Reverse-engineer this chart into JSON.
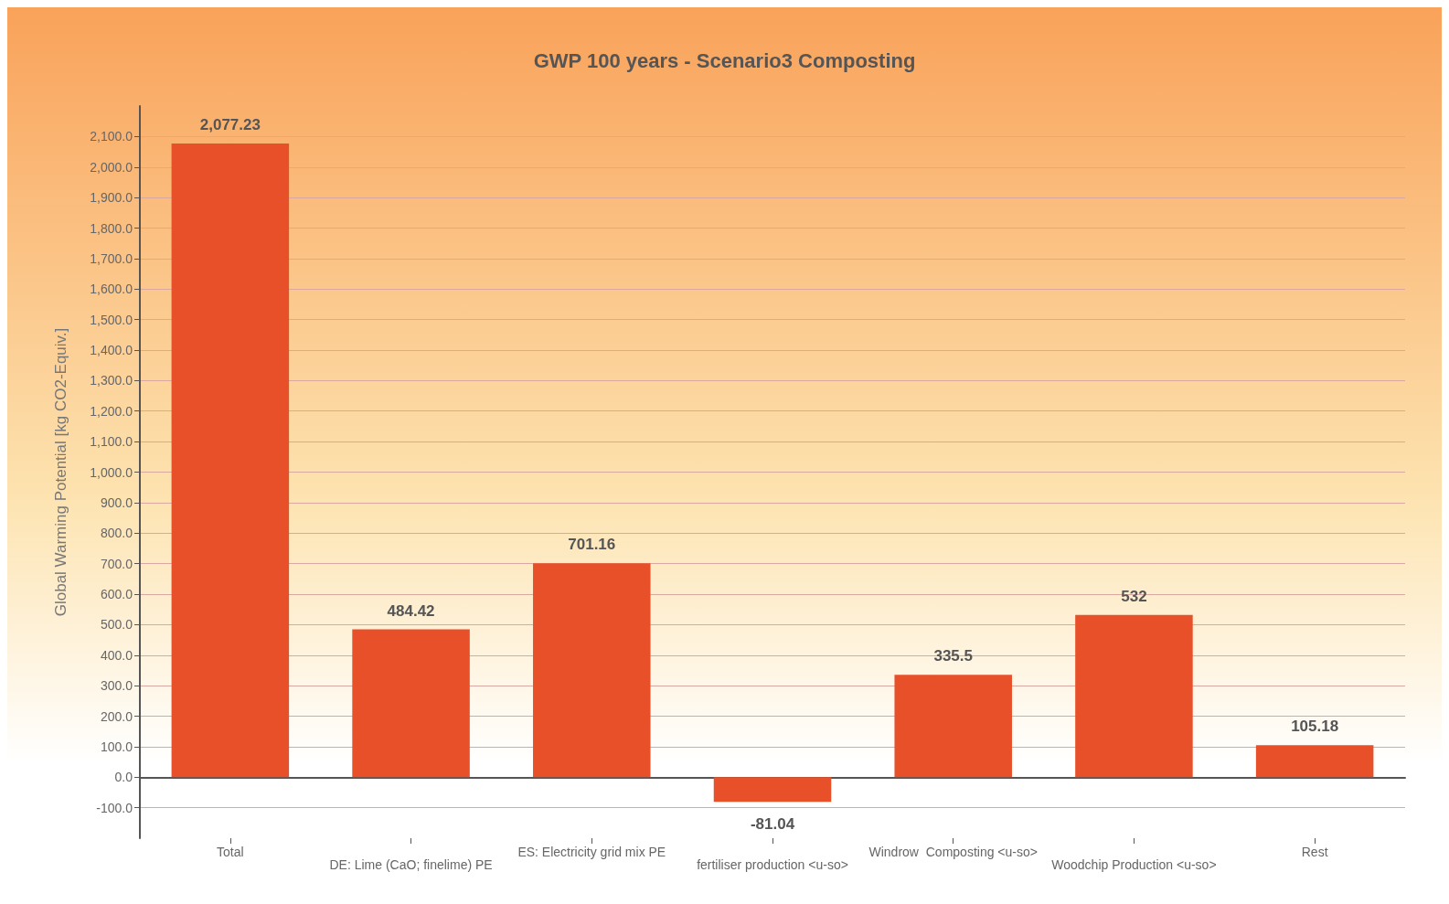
{
  "chart_data": {
    "type": "bar",
    "title": "GWP 100 years - Scenario3 Composting",
    "ylabel": "Global Warming Potential [kg CO2-Equiv.]",
    "categories": [
      "Total",
      "DE: Lime (CaO; finelime) PE",
      "ES: Electricity grid mix PE",
      "fertiliser production <u-so>",
      "Windrow  Composting <u-so>",
      "Woodchip Production <u-so>",
      "Rest"
    ],
    "values": [
      2077.23,
      484.42,
      701.16,
      -81.04,
      335.5,
      532,
      105.18
    ],
    "value_labels": [
      "2,077.23",
      "484.42",
      "701.16",
      "-81.04",
      "335.5",
      "532",
      "105.18"
    ],
    "color": "#e8502a",
    "ylim": [
      -200,
      2200
    ],
    "yticks": [
      {
        "value": -100,
        "label": "-100.0"
      },
      {
        "value": 0,
        "label": "0.0"
      },
      {
        "value": 100,
        "label": "100.0"
      },
      {
        "value": 200,
        "label": "200.0"
      },
      {
        "value": 300,
        "label": "300.0"
      },
      {
        "value": 400,
        "label": "400.0"
      },
      {
        "value": 500,
        "label": "500.0"
      },
      {
        "value": 600,
        "label": "600.0"
      },
      {
        "value": 700,
        "label": "700.0"
      },
      {
        "value": 800,
        "label": "800.0"
      },
      {
        "value": 900,
        "label": "900.0"
      },
      {
        "value": 1000,
        "label": "1,000.0"
      },
      {
        "value": 1100,
        "label": "1,100.0"
      },
      {
        "value": 1200,
        "label": "1,200.0"
      },
      {
        "value": 1300,
        "label": "1,300.0"
      },
      {
        "value": 1400,
        "label": "1,400.0"
      },
      {
        "value": 1500,
        "label": "1,500.0"
      },
      {
        "value": 1600,
        "label": "1,600.0"
      },
      {
        "value": 1700,
        "label": "1,700.0"
      },
      {
        "value": 1800,
        "label": "1,800.0"
      },
      {
        "value": 1900,
        "label": "1,900.0"
      },
      {
        "value": 2000,
        "label": "2,000.0"
      },
      {
        "value": 2100,
        "label": "2,100.0"
      }
    ],
    "grid": "y"
  }
}
